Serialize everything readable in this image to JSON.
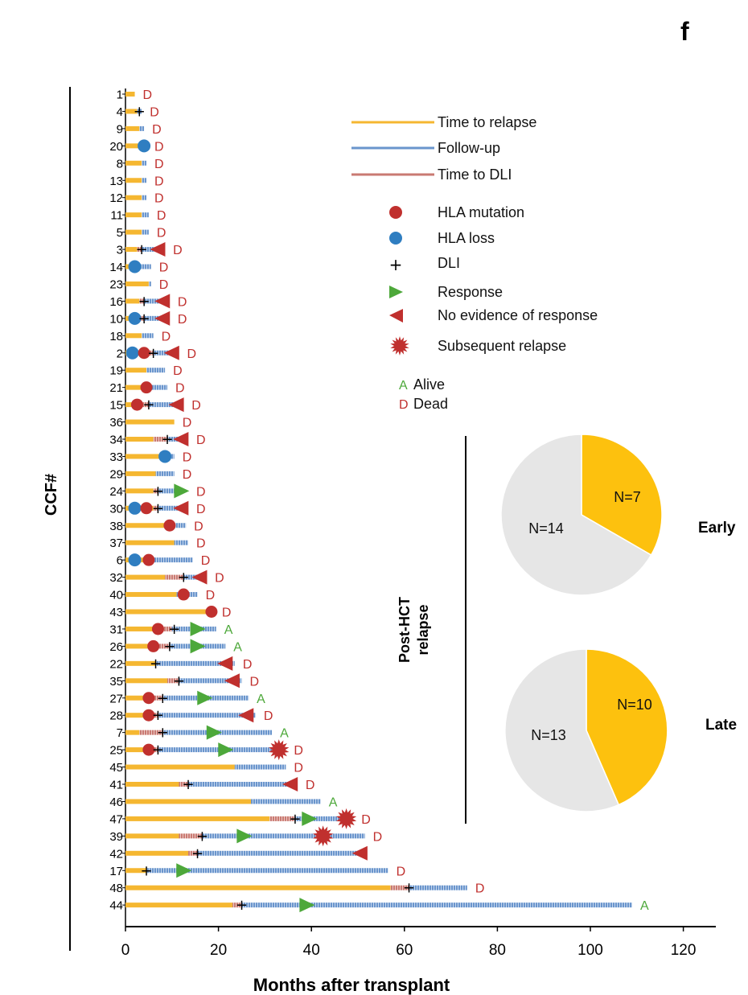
{
  "panel_label": "f",
  "colors": {
    "relapse": "#f5b731",
    "followup": "#6a95cc",
    "dli": "#c97a72",
    "hla_mutation": "#c0302e",
    "hla_loss": "#2f7ec1",
    "response": "#4da83a",
    "no_response": "#c0302e",
    "subsequent_relapse": "#c0302e",
    "alive": "#4da83a",
    "dead": "#c0302e",
    "pie_yellow": "#fdc10e",
    "pie_grey": "#e6e6e6"
  },
  "chart_data": [
    {
      "type": "swimmer",
      "title": "",
      "xlabel": "Months after transplant",
      "ylabel": "CCF#",
      "xlim": [
        0,
        120
      ],
      "xticks": [
        0,
        20,
        40,
        60,
        80,
        100,
        120
      ],
      "legend": {
        "lines": [
          {
            "key": "relapse",
            "label": "Time to relapse"
          },
          {
            "key": "followup",
            "label": "Follow-up"
          },
          {
            "key": "dli",
            "label": "Time to DLI"
          }
        ],
        "symbols": [
          {
            "key": "hla_mutation",
            "label": "HLA mutation"
          },
          {
            "key": "hla_loss",
            "label": "HLA loss"
          },
          {
            "key": "dli",
            "label": "DLI"
          },
          {
            "key": "response",
            "label": "Response"
          },
          {
            "key": "no_response",
            "label": "No evidence of response"
          },
          {
            "key": "subsequent_relapse",
            "label": "Subsequent relapse"
          }
        ],
        "status": [
          {
            "code": "A",
            "label": "Alive"
          },
          {
            "code": "D",
            "label": "Dead"
          }
        ]
      },
      "patients": [
        {
          "id": "1",
          "relapse": 2,
          "dli_end": null,
          "end": 2,
          "status": "D"
        },
        {
          "id": "4",
          "relapse": 2.5,
          "dli_end": null,
          "end": 3.5,
          "status": "D",
          "dli": 3
        },
        {
          "id": "9",
          "relapse": 3,
          "dli_end": null,
          "end": 4,
          "status": "D"
        },
        {
          "id": "20",
          "relapse": 3.5,
          "dli_end": null,
          "end": 4.5,
          "status": "D",
          "hla_loss": 4
        },
        {
          "id": "8",
          "relapse": 3.5,
          "dli_end": null,
          "end": 4.5,
          "status": "D"
        },
        {
          "id": "13",
          "relapse": 3.5,
          "dli_end": null,
          "end": 4.5,
          "status": "D"
        },
        {
          "id": "12",
          "relapse": 3.5,
          "dli_end": null,
          "end": 4.5,
          "status": "D"
        },
        {
          "id": "11",
          "relapse": 3.5,
          "dli_end": null,
          "end": 5,
          "status": "D"
        },
        {
          "id": "5",
          "relapse": 3.5,
          "dli_end": null,
          "end": 5,
          "status": "D"
        },
        {
          "id": "3",
          "relapse": 2.5,
          "dli_end": 3.5,
          "end": 7,
          "status": "D",
          "dli": 3.5,
          "no_response": 7
        },
        {
          "id": "14",
          "relapse": 3,
          "dli_end": null,
          "end": 5.5,
          "status": "D",
          "hla_loss": 2
        },
        {
          "id": "23",
          "relapse": 5,
          "dli_end": null,
          "end": 5.5,
          "status": "D"
        },
        {
          "id": "16",
          "relapse": 3,
          "dli_end": 4,
          "end": 8,
          "status": "D",
          "dli": 4,
          "no_response": 8
        },
        {
          "id": "10",
          "relapse": 3,
          "dli_end": 4,
          "end": 8,
          "status": "D",
          "dli": 4,
          "no_response": 8,
          "hla_loss": 2
        },
        {
          "id": "18",
          "relapse": 3.5,
          "dli_end": null,
          "end": 6,
          "status": "D"
        },
        {
          "id": "2",
          "relapse": 3,
          "dli_end": 6,
          "end": 10,
          "status": "D",
          "dli": 6,
          "no_response": 10,
          "hla_loss": 1.5,
          "hla_mutation": 4
        },
        {
          "id": "19",
          "relapse": 4.5,
          "dli_end": null,
          "end": 8.5,
          "status": "D"
        },
        {
          "id": "21",
          "relapse": 4.5,
          "dli_end": null,
          "end": 9,
          "status": "D",
          "hla_mutation": 4.5
        },
        {
          "id": "15",
          "relapse": 3.5,
          "dli_end": 5,
          "end": 11,
          "status": "D",
          "dli": 5,
          "no_response": 11,
          "hla_mutation": 2.5
        },
        {
          "id": "36",
          "relapse": 10.5,
          "dli_end": null,
          "end": 10.5,
          "status": "D"
        },
        {
          "id": "34",
          "relapse": 6,
          "dli_end": 9,
          "end": 12,
          "status": "D",
          "dli": 9,
          "no_response": 12
        },
        {
          "id": "33",
          "relapse": 8,
          "dli_end": null,
          "end": 10.5,
          "status": "D",
          "hla_loss": 8.5
        },
        {
          "id": "29",
          "relapse": 6.5,
          "dli_end": null,
          "end": 10.5,
          "status": "D"
        },
        {
          "id": "24",
          "relapse": 6,
          "dli_end": 7,
          "end": 12,
          "status": "D",
          "dli": 7,
          "response": 12
        },
        {
          "id": "30",
          "relapse": 6,
          "dli_end": 7,
          "end": 12,
          "status": "D",
          "dli": 7,
          "no_response": 12,
          "hla_loss": 2,
          "hla_mutation": 4.5
        },
        {
          "id": "38",
          "relapse": 9,
          "dli_end": null,
          "end": 13,
          "status": "D",
          "hla_mutation": 9.5
        },
        {
          "id": "37",
          "relapse": 10.5,
          "dli_end": null,
          "end": 13.5,
          "status": "D"
        },
        {
          "id": "6",
          "relapse": 4.5,
          "dli_end": null,
          "end": 14.5,
          "status": "D",
          "hla_loss": 2,
          "hla_mutation": 5
        },
        {
          "id": "32",
          "relapse": 8.5,
          "dli_end": 12.5,
          "end": 16,
          "status": "D",
          "dli": 12.5,
          "no_response": 16
        },
        {
          "id": "40",
          "relapse": 11,
          "dli_end": null,
          "end": 15.5,
          "status": "D",
          "hla_mutation": 12.5
        },
        {
          "id": "43",
          "relapse": 18.5,
          "dli_end": null,
          "end": 19,
          "status": "D",
          "hla_mutation": 18.5
        },
        {
          "id": "31",
          "relapse": 7,
          "dli_end": 10,
          "end": 19.5,
          "status": "A",
          "dli": 10.5,
          "response": 15.5,
          "hla_mutation": 7
        },
        {
          "id": "26",
          "relapse": 6,
          "dli_end": 9.5,
          "end": 21.5,
          "status": "A",
          "dli": 9.5,
          "response": 15.5,
          "hla_mutation": 6
        },
        {
          "id": "22",
          "relapse": 6.5,
          "dli_end": null,
          "end": 23.5,
          "status": "D",
          "dli": 6.5,
          "no_response": 21.5
        },
        {
          "id": "35",
          "relapse": 9,
          "dli_end": 11.5,
          "end": 25,
          "status": "D",
          "dli": 11.5,
          "no_response": 23
        },
        {
          "id": "27",
          "relapse": 5,
          "dli_end": 8,
          "end": 26.5,
          "status": "A",
          "dli": 8,
          "response": 17,
          "hla_mutation": 5
        },
        {
          "id": "28",
          "relapse": 5,
          "dli_end": 7,
          "end": 28,
          "status": "D",
          "dli": 7,
          "no_response": 26,
          "hla_mutation": 5
        },
        {
          "id": "7",
          "relapse": 3,
          "dli_end": 8,
          "end": 31.5,
          "status": "A",
          "dli": 8,
          "response": 19
        },
        {
          "id": "25",
          "relapse": 5,
          "dli_end": 7,
          "end": 33,
          "status": "D",
          "dli": 7,
          "response": 21.5,
          "subsequent_relapse": 33,
          "hla_mutation": 5
        },
        {
          "id": "45",
          "relapse": 23.5,
          "dli_end": null,
          "end": 34.5,
          "status": "D"
        },
        {
          "id": "41",
          "relapse": 11.5,
          "dli_end": 13.5,
          "end": 37,
          "status": "D",
          "dli": 13.5,
          "no_response": 35.5
        },
        {
          "id": "46",
          "relapse": 27,
          "dli_end": null,
          "end": 42,
          "status": "A"
        },
        {
          "id": "47",
          "relapse": 31,
          "dli_end": 36.5,
          "end": 47.5,
          "status": "D",
          "dli": 36.5,
          "response": 39.5,
          "subsequent_relapse": 47.5
        },
        {
          "id": "39",
          "relapse": 11.5,
          "dli_end": 16.5,
          "end": 51.5,
          "status": "D",
          "dli": 16.5,
          "response": 25.5,
          "subsequent_relapse": 42.5
        },
        {
          "id": "42",
          "relapse": 13.5,
          "dli_end": 15.5,
          "end": 52,
          "status": "",
          "dli": 15.5,
          "no_response": 50.5
        },
        {
          "id": "17",
          "relapse": 4.5,
          "dli_end": null,
          "end": 56.5,
          "status": "D",
          "dli": 4.5,
          "response": 12.5
        },
        {
          "id": "48",
          "relapse": 57,
          "dli_end": 61,
          "end": 73.5,
          "status": "D",
          "dli": 61
        },
        {
          "id": "44",
          "relapse": 23,
          "dli_end": 25,
          "end": 109,
          "status": "A",
          "dli": 25,
          "response": 39
        }
      ]
    },
    {
      "type": "pie",
      "title": "Early",
      "group": "Post-HCT relapse",
      "slices": [
        {
          "label": "N=7",
          "value": 7,
          "color": "#fdc10e"
        },
        {
          "label": "N=14",
          "value": 14,
          "color": "#e6e6e6"
        }
      ]
    },
    {
      "type": "pie",
      "title": "Late",
      "group": "Post-HCT relapse",
      "slices": [
        {
          "label": "N=10",
          "value": 10,
          "color": "#fdc10e"
        },
        {
          "label": "N=13",
          "value": 13,
          "color": "#e6e6e6"
        }
      ]
    }
  ],
  "pie_group_label_line1": "Post-HCT",
  "pie_group_label_line2": "relapse"
}
